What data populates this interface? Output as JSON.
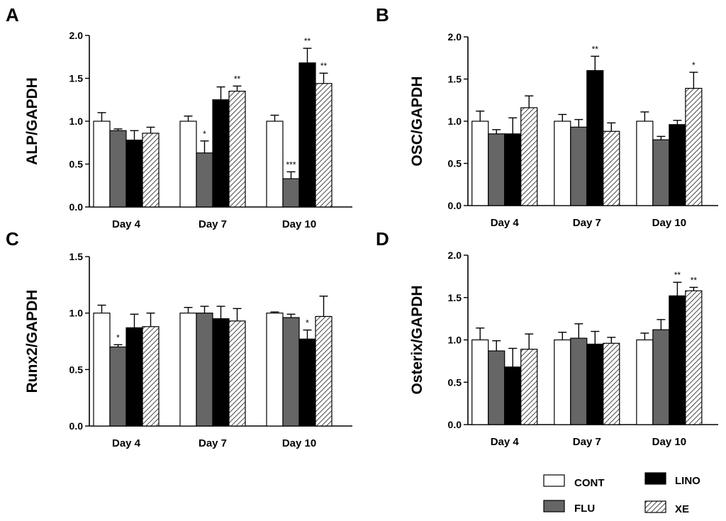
{
  "legend": {
    "items": [
      {
        "name": "CONT",
        "fill": "white"
      },
      {
        "name": "FLU",
        "fill": "gray"
      },
      {
        "name": "LINO",
        "fill": "black"
      },
      {
        "name": "XE",
        "fill": "hatch"
      }
    ]
  },
  "colors": {
    "white": "#ffffff",
    "gray": "#666666",
    "black": "#000000",
    "hatch": "#333333"
  },
  "chart_data": [
    {
      "type": "bar",
      "panel": "A",
      "ylabel": "ALP/GAPDH",
      "ylim": [
        0,
        2.0
      ],
      "yticks": [
        "0.0",
        "0.5",
        "1.0",
        "1.5",
        "2.0"
      ],
      "categories": [
        "Day 4",
        "Day 7",
        "Day 10"
      ],
      "series": [
        {
          "name": "CONT",
          "values": [
            1.0,
            1.0,
            1.0
          ],
          "errors": [
            0.1,
            0.06,
            0.07
          ],
          "sig": [
            "",
            "",
            ""
          ]
        },
        {
          "name": "FLU",
          "values": [
            0.89,
            0.63,
            0.33
          ],
          "errors": [
            0.02,
            0.14,
            0.08
          ],
          "sig": [
            "",
            "*",
            "***"
          ]
        },
        {
          "name": "LINO",
          "values": [
            0.78,
            1.25,
            1.68
          ],
          "errors": [
            0.11,
            0.15,
            0.17
          ],
          "sig": [
            "",
            "",
            "**"
          ]
        },
        {
          "name": "XE",
          "values": [
            0.86,
            1.35,
            1.44
          ],
          "errors": [
            0.07,
            0.06,
            0.12
          ],
          "sig": [
            "",
            "**",
            "**"
          ]
        }
      ]
    },
    {
      "type": "bar",
      "panel": "B",
      "ylabel": "OSC/GAPDH",
      "ylim": [
        0,
        2.0
      ],
      "yticks": [
        "0.0",
        "0.5",
        "1.0",
        "1.5",
        "2.0"
      ],
      "categories": [
        "Day 4",
        "Day 7",
        "Day 10"
      ],
      "series": [
        {
          "name": "CONT",
          "values": [
            1.0,
            1.0,
            1.0
          ],
          "errors": [
            0.12,
            0.08,
            0.11
          ],
          "sig": [
            "",
            "",
            ""
          ]
        },
        {
          "name": "FLU",
          "values": [
            0.85,
            0.93,
            0.78
          ],
          "errors": [
            0.05,
            0.09,
            0.04
          ],
          "sig": [
            "",
            "",
            ""
          ]
        },
        {
          "name": "LINO",
          "values": [
            0.85,
            1.6,
            0.96
          ],
          "errors": [
            0.19,
            0.17,
            0.05
          ],
          "sig": [
            "",
            "**",
            ""
          ]
        },
        {
          "name": "XE",
          "values": [
            1.16,
            0.88,
            1.39
          ],
          "errors": [
            0.14,
            0.1,
            0.19
          ],
          "sig": [
            "",
            "",
            "*"
          ]
        }
      ]
    },
    {
      "type": "bar",
      "panel": "C",
      "ylabel": "Runx2/GAPDH",
      "ylim": [
        0,
        1.5
      ],
      "yticks": [
        "0.0",
        "0.5",
        "1.0",
        "1.5"
      ],
      "categories": [
        "Day 4",
        "Day 7",
        "Day 10"
      ],
      "series": [
        {
          "name": "CONT",
          "values": [
            1.0,
            1.0,
            1.0
          ],
          "errors": [
            0.07,
            0.05,
            0.01
          ],
          "sig": [
            "",
            "",
            ""
          ]
        },
        {
          "name": "FLU",
          "values": [
            0.7,
            1.0,
            0.96
          ],
          "errors": [
            0.02,
            0.06,
            0.03
          ],
          "sig": [
            "*",
            "",
            ""
          ]
        },
        {
          "name": "LINO",
          "values": [
            0.87,
            0.95,
            0.77
          ],
          "errors": [
            0.12,
            0.11,
            0.08
          ],
          "sig": [
            "",
            "",
            "*"
          ]
        },
        {
          "name": "XE",
          "values": [
            0.88,
            0.93,
            0.97
          ],
          "errors": [
            0.12,
            0.11,
            0.18
          ],
          "sig": [
            "",
            "",
            ""
          ]
        }
      ]
    },
    {
      "type": "bar",
      "panel": "D",
      "ylabel": "Osterix/GAPDH",
      "ylim": [
        0,
        2.0
      ],
      "yticks": [
        "0.0",
        "0.5",
        "1.0",
        "1.5",
        "2.0"
      ],
      "categories": [
        "Day 4",
        "Day 7",
        "Day 10"
      ],
      "series": [
        {
          "name": "CONT",
          "values": [
            1.0,
            1.0,
            1.0
          ],
          "errors": [
            0.14,
            0.09,
            0.08
          ],
          "sig": [
            "",
            "",
            ""
          ]
        },
        {
          "name": "FLU",
          "values": [
            0.87,
            1.02,
            1.12
          ],
          "errors": [
            0.12,
            0.17,
            0.12
          ],
          "sig": [
            "",
            "",
            ""
          ]
        },
        {
          "name": "LINO",
          "values": [
            0.68,
            0.95,
            1.52
          ],
          "errors": [
            0.22,
            0.15,
            0.16
          ],
          "sig": [
            "",
            "",
            "**"
          ]
        },
        {
          "name": "XE",
          "values": [
            0.89,
            0.96,
            1.58
          ],
          "errors": [
            0.18,
            0.07,
            0.04
          ],
          "sig": [
            "",
            "",
            "**"
          ]
        }
      ]
    }
  ]
}
